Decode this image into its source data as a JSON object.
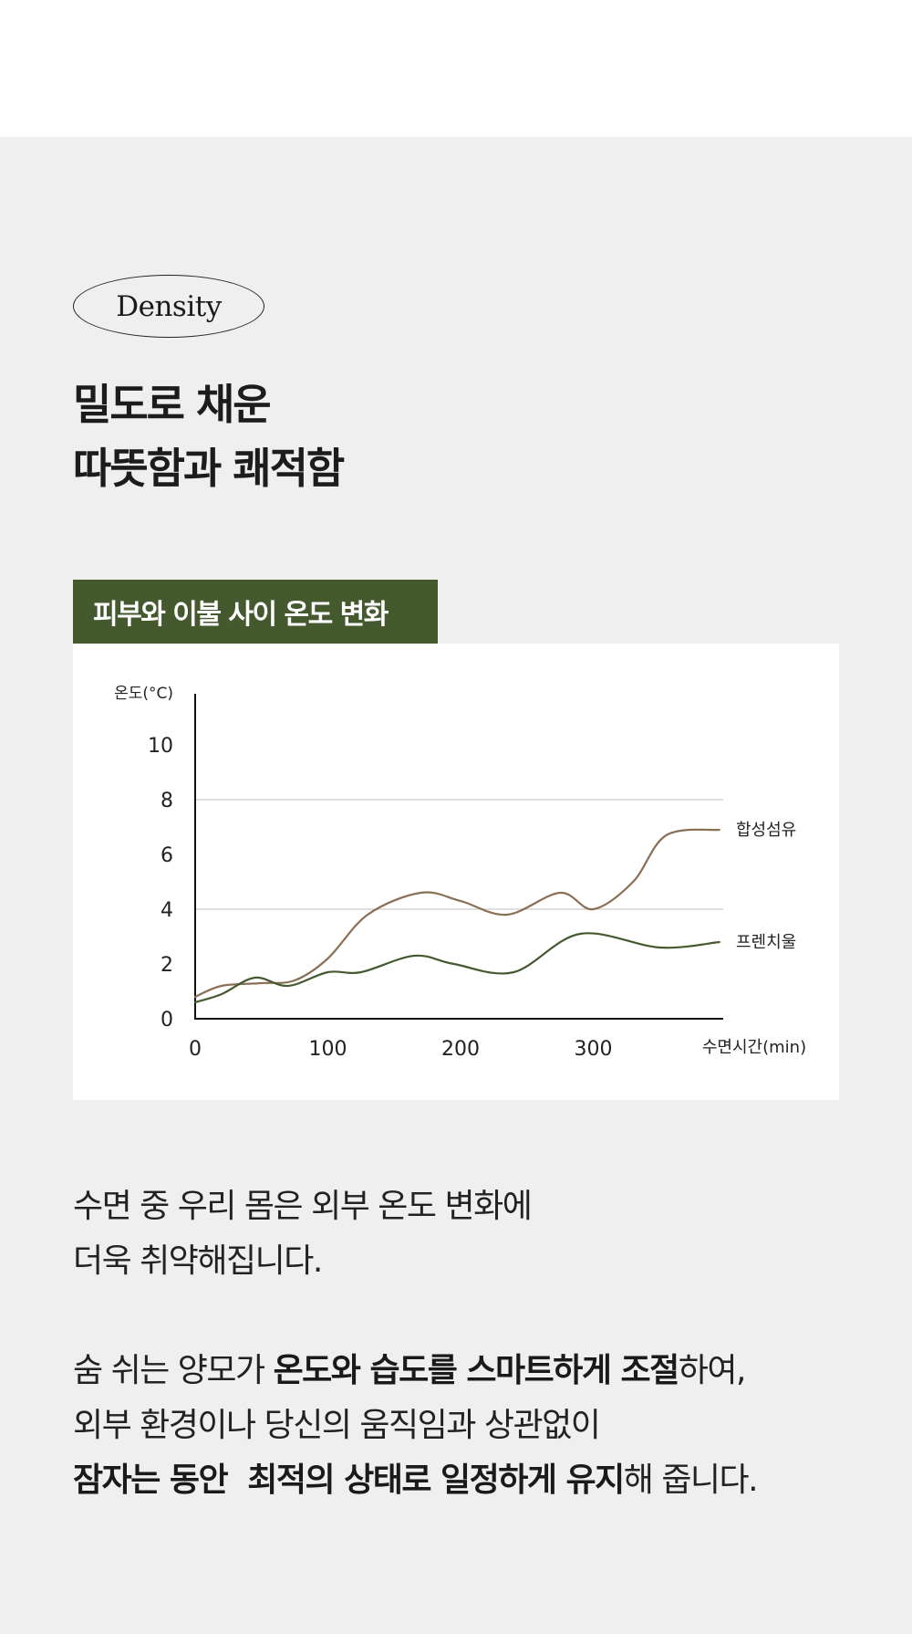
{
  "badge": {
    "label": "Density"
  },
  "headline": {
    "line1": "밀도로 채운",
    "line2": "따뜻함과 쾌적함"
  },
  "chart_tag": {
    "label": "피부와 이불 사이 온도 변화"
  },
  "chart_data": {
    "type": "line",
    "title": "피부와 이불 사이 온도 변화",
    "xlabel": "수면시간(min)",
    "ylabel": "온도(°C)",
    "xlim": [
      0,
      400
    ],
    "ylim": [
      0,
      10
    ],
    "xticks": [
      "0",
      "100",
      "200",
      "300"
    ],
    "yticks": [
      "0",
      "2",
      "4",
      "6",
      "8",
      "10"
    ],
    "grid": {
      "horizontal_at": [
        4,
        8
      ],
      "color": "#cccccc"
    },
    "legend_position": "inline-right",
    "series": [
      {
        "name": "합성섬유",
        "color": "#8b6f55",
        "x": [
          0,
          20,
          50,
          75,
          100,
          130,
          170,
          200,
          235,
          275,
          300,
          330,
          355,
          395
        ],
        "values": [
          0.8,
          1.2,
          1.3,
          1.4,
          2.2,
          3.8,
          4.6,
          4.3,
          3.8,
          4.6,
          4.0,
          5.0,
          6.7,
          6.9
        ]
      },
      {
        "name": "프렌치울",
        "color": "#445a2e",
        "x": [
          0,
          20,
          45,
          70,
          100,
          125,
          165,
          195,
          240,
          290,
          350,
          395
        ],
        "values": [
          0.6,
          0.9,
          1.5,
          1.2,
          1.7,
          1.7,
          2.3,
          2.0,
          1.7,
          3.1,
          2.6,
          2.8
        ]
      }
    ]
  },
  "paragraph1": {
    "line1": "수면 중 우리 몸은 외부 온도 변화에",
    "line2": "더욱 취약해집니다."
  },
  "paragraph2": {
    "line1_a": "숨 쉬는 양모가 ",
    "line1_b": "온도와 습도를 스마트하게 조절",
    "line1_c": "하여,",
    "line2": "외부 환경이나 당신의 움직임과 상관없이",
    "line3_a": "잠자는 동안  최적의 상태로 일정하게 유지",
    "line3_b": "해 줍니다."
  }
}
